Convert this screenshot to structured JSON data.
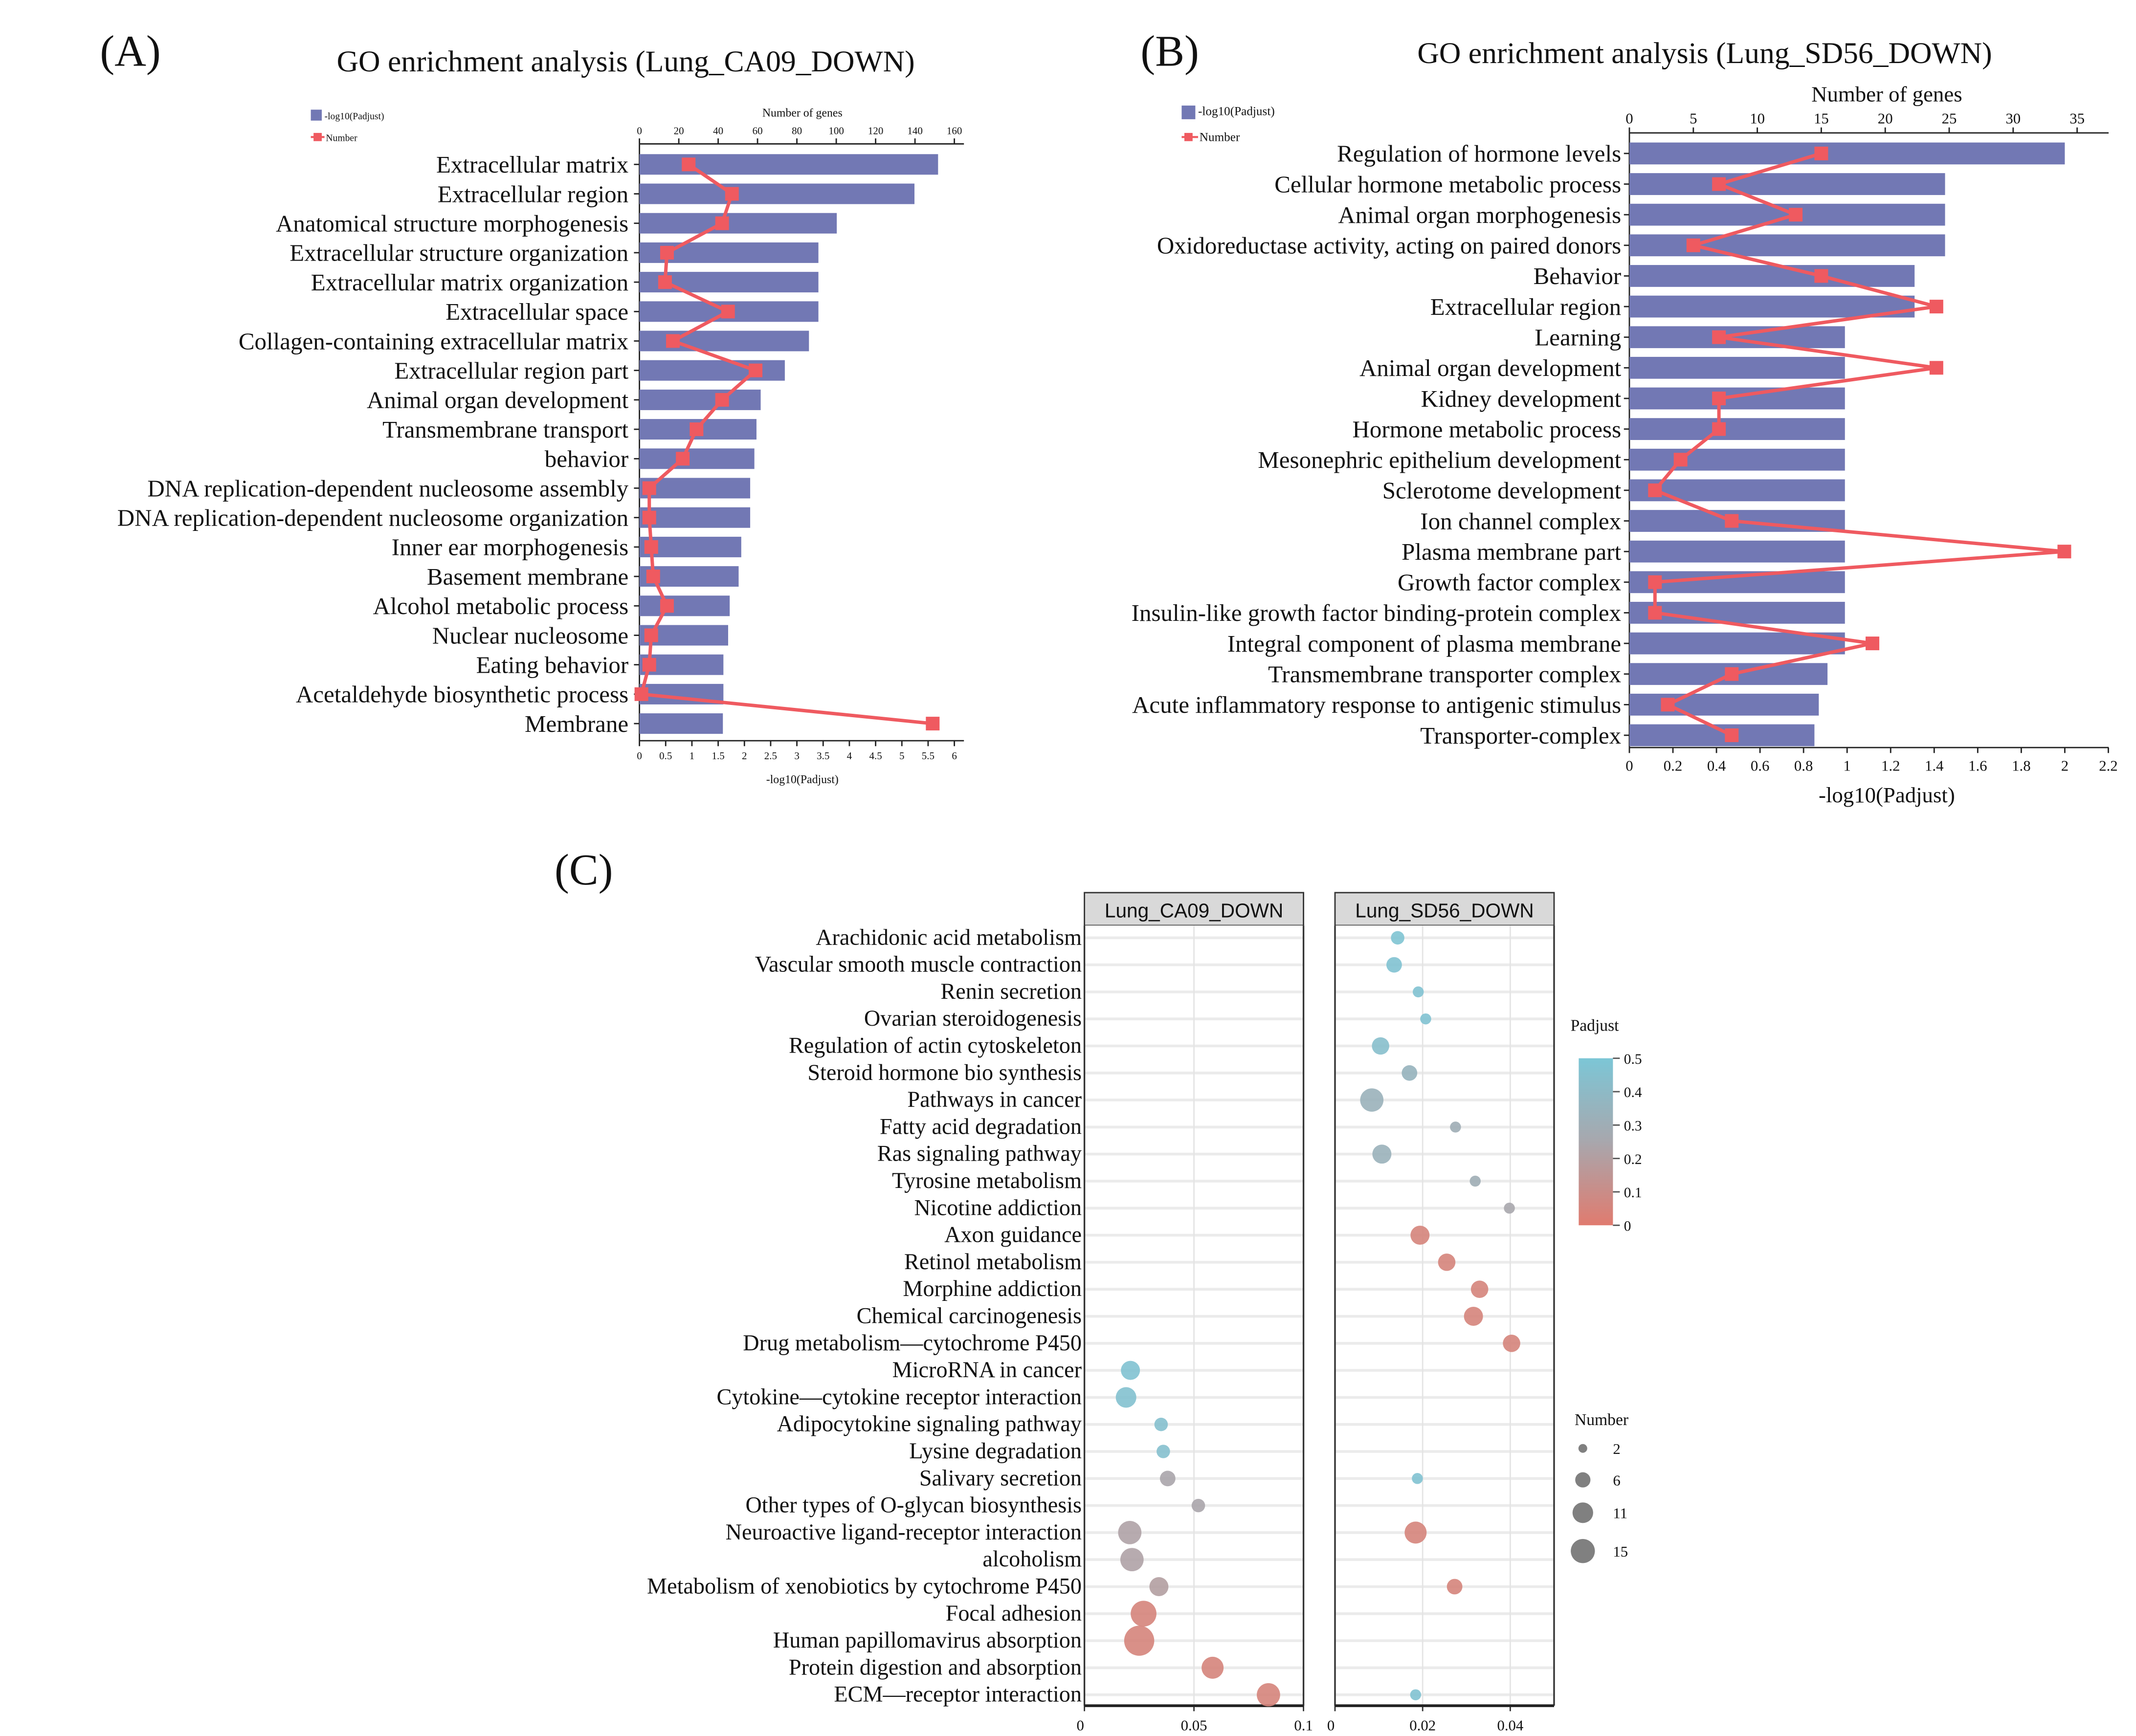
{
  "chart_data": [
    {
      "type": "bar",
      "panel_label": "(A)",
      "title": "GO enrichment analysis (Lung_CA09_DOWN)",
      "legend": [
        "-log10(Padjust)",
        "Number"
      ],
      "xlabel_top": "Number of genes",
      "xlabel_bottom": "-log10(Padjust)",
      "top_ticks": [
        "0",
        "20",
        "40",
        "60",
        "80",
        "100",
        "120",
        "140",
        "160"
      ],
      "bottom_ticks": [
        "0",
        "0.5",
        "1",
        "1.5",
        "2",
        "2.5",
        "3",
        "3.5",
        "4",
        "4.5",
        "5",
        "5.5",
        "6"
      ],
      "xlim_bottom": [
        0,
        6
      ],
      "xlim_top": [
        0,
        160
      ],
      "categories": [
        "Extracellular matrix",
        "Extracellular region",
        "Anatomical structure morphogenesis",
        "Extracellular structure organization",
        "Extracellular matrix organization",
        "Extracellular space",
        "Collagen-containing extracellular matrix",
        "Extracellular region part",
        "Animal organ development",
        "Transmembrane transport",
        "behavior",
        "DNA replication-dependent nucleosome assembly",
        "DNA replication-dependent nucleosome organization",
        "Inner ear morphogenesis",
        "Basement membrane",
        "Alcohol metabolic process",
        "Nuclear nucleosome",
        "Eating behavior",
        "Acetaldehyde biosynthetic process",
        "Membrane"
      ],
      "series": [
        {
          "name": "-log10(Padjust)",
          "kind": "bar",
          "values": [
            5.69,
            5.24,
            3.76,
            3.41,
            3.41,
            3.41,
            3.23,
            2.77,
            2.31,
            2.23,
            2.19,
            2.11,
            2.11,
            1.94,
            1.89,
            1.72,
            1.69,
            1.6,
            1.6,
            1.59
          ]
        },
        {
          "name": "Number",
          "kind": "line",
          "values": [
            25,
            47,
            42,
            14,
            13,
            45,
            17,
            59,
            42,
            29,
            22,
            5,
            5,
            6,
            7,
            14,
            6,
            5,
            1,
            149
          ]
        }
      ],
      "colors": {
        "bar": "#7278b4",
        "line": "#ef5a60"
      }
    },
    {
      "type": "bar",
      "panel_label": "(B)",
      "title": "GO enrichment analysis (Lung_SD56_DOWN)",
      "legend": [
        "-log10(Padjust)",
        "Number"
      ],
      "xlabel_top": "Number of genes",
      "xlabel_bottom": "-log10(Padjust)",
      "top_ticks": [
        "0",
        "5",
        "10",
        "15",
        "20",
        "25",
        "30",
        "35"
      ],
      "bottom_ticks": [
        "0",
        "0.2",
        "0.4",
        "0.6",
        "0.8",
        "1",
        "1.2",
        "1.4",
        "1.6",
        "1.8",
        "2",
        "2.2"
      ],
      "xlim_bottom": [
        0,
        2.2
      ],
      "xlim_top": [
        0,
        37.5
      ],
      "categories": [
        "Regulation of hormone levels",
        "Cellular hormone metabolic process",
        "Animal organ morphogenesis",
        "Oxidoreductase activity, acting on paired donors",
        "Behavior",
        "Extracellular region",
        "Learning",
        "Animal organ development",
        "Kidney development",
        "Hormone metabolic process",
        "Mesonephric epithelium development",
        "Sclerotome development",
        "Ion channel complex",
        "Plasma membrane part",
        "Growth factor complex",
        "Insulin-like growth factor binding-protein complex",
        "Integral component of plasma membrane",
        "Transmembrane transporter complex",
        "Acute inflammatory response to antigenic stimulus",
        "Transporter-complex"
      ],
      "series": [
        {
          "name": "-log10(Padjust)",
          "kind": "bar",
          "values": [
            2.0,
            1.45,
            1.45,
            1.45,
            1.31,
            1.31,
            0.99,
            0.99,
            0.99,
            0.99,
            0.99,
            0.99,
            0.99,
            0.99,
            0.99,
            0.99,
            0.99,
            0.91,
            0.87,
            0.85
          ]
        },
        {
          "name": "Number",
          "kind": "line",
          "values": [
            15,
            7,
            13,
            5,
            15,
            24,
            7,
            24,
            7,
            7,
            4,
            2,
            8,
            34,
            2,
            2,
            19,
            8,
            3,
            8
          ]
        }
      ],
      "colors": {
        "bar": "#7278b4",
        "line": "#ef5a60"
      }
    },
    {
      "type": "scatter",
      "panel_label": "(C)",
      "facets": [
        "Lung_CA09_DOWN",
        "Lung_SD56_DOWN"
      ],
      "facet_ticks": [
        [
          "0",
          "0.05",
          "0.1"
        ],
        [
          "0",
          "0.02",
          "0.04"
        ]
      ],
      "facet_xlim": [
        [
          0,
          0.1
        ],
        [
          0,
          0.05
        ]
      ],
      "categories": [
        "Arachidonic acid metabolism",
        "Vascular smooth muscle contraction",
        "Renin secretion",
        "Ovarian steroidogenesis",
        "Regulation of actin cytoskeleton",
        "Steroid hormone bio synthesis",
        "Pathways in cancer",
        "Fatty acid degradation",
        "Ras signaling pathway",
        "Tyrosine metabolism",
        "Nicotine addiction",
        "Axon guidance",
        "Retinol metabolism",
        "Morphine addiction",
        "Chemical carcinogenesis",
        "Drug metabolism—cytochrome P450",
        "MicroRNA in cancer",
        "Cytokine—cytokine receptor interaction",
        "Adipocytokine signaling pathway",
        "Lysine degradation",
        "Salivary secretion",
        "Other types of O-glycan biosynthesis",
        "Neuroactive ligand-receptor interaction",
        "alcoholism",
        "Metabolism of xenobiotics by cytochrome P450",
        "Focal adhesion",
        "Human papillomavirus absorption",
        "Protein digestion and absorption",
        "ECM—receptor interaction"
      ],
      "points": [
        {
          "facet": 1,
          "category": 0,
          "x": 0.0143,
          "padjust": 0.48,
          "number": 3
        },
        {
          "facet": 1,
          "category": 1,
          "x": 0.0135,
          "padjust": 0.47,
          "number": 4
        },
        {
          "facet": 1,
          "category": 2,
          "x": 0.019,
          "padjust": 0.47,
          "number": 2
        },
        {
          "facet": 1,
          "category": 3,
          "x": 0.0207,
          "padjust": 0.47,
          "number": 2
        },
        {
          "facet": 1,
          "category": 4,
          "x": 0.0104,
          "padjust": 0.44,
          "number": 5
        },
        {
          "facet": 1,
          "category": 5,
          "x": 0.017,
          "padjust": 0.35,
          "number": 4
        },
        {
          "facet": 1,
          "category": 6,
          "x": 0.0084,
          "padjust": 0.33,
          "number": 9
        },
        {
          "facet": 1,
          "category": 7,
          "x": 0.0275,
          "padjust": 0.3,
          "number": 2
        },
        {
          "facet": 1,
          "category": 8,
          "x": 0.0107,
          "padjust": 0.33,
          "number": 6
        },
        {
          "facet": 1,
          "category": 9,
          "x": 0.032,
          "padjust": 0.3,
          "number": 2
        },
        {
          "facet": 1,
          "category": 10,
          "x": 0.0398,
          "padjust": 0.25,
          "number": 2
        },
        {
          "facet": 1,
          "category": 11,
          "x": 0.0194,
          "padjust": 0.05,
          "number": 6
        },
        {
          "facet": 1,
          "category": 12,
          "x": 0.0255,
          "padjust": 0.05,
          "number": 5
        },
        {
          "facet": 1,
          "category": 13,
          "x": 0.033,
          "padjust": 0.05,
          "number": 5
        },
        {
          "facet": 1,
          "category": 14,
          "x": 0.0316,
          "padjust": 0.05,
          "number": 6
        },
        {
          "facet": 1,
          "category": 15,
          "x": 0.0403,
          "padjust": 0.05,
          "number": 5
        },
        {
          "facet": 0,
          "category": 16,
          "x": 0.021,
          "padjust": 0.47,
          "number": 6
        },
        {
          "facet": 0,
          "category": 17,
          "x": 0.019,
          "padjust": 0.46,
          "number": 7
        },
        {
          "facet": 0,
          "category": 18,
          "x": 0.035,
          "padjust": 0.45,
          "number": 3
        },
        {
          "facet": 0,
          "category": 19,
          "x": 0.036,
          "padjust": 0.45,
          "number": 3
        },
        {
          "facet": 0,
          "category": 20,
          "x": 0.038,
          "padjust": 0.24,
          "number": 4
        },
        {
          "facet": 1,
          "category": 20,
          "x": 0.0188,
          "padjust": 0.47,
          "number": 2
        },
        {
          "facet": 0,
          "category": 21,
          "x": 0.052,
          "padjust": 0.24,
          "number": 3
        },
        {
          "facet": 0,
          "category": 22,
          "x": 0.0207,
          "padjust": 0.22,
          "number": 9
        },
        {
          "facet": 1,
          "category": 22,
          "x": 0.0184,
          "padjust": 0.05,
          "number": 8
        },
        {
          "facet": 0,
          "category": 23,
          "x": 0.0217,
          "padjust": 0.22,
          "number": 9
        },
        {
          "facet": 0,
          "category": 24,
          "x": 0.034,
          "padjust": 0.2,
          "number": 6
        },
        {
          "facet": 1,
          "category": 24,
          "x": 0.0273,
          "padjust": 0.05,
          "number": 4
        },
        {
          "facet": 0,
          "category": 25,
          "x": 0.027,
          "padjust": 0.05,
          "number": 11
        },
        {
          "facet": 0,
          "category": 26,
          "x": 0.025,
          "padjust": 0.05,
          "number": 15
        },
        {
          "facet": 0,
          "category": 27,
          "x": 0.0585,
          "padjust": 0.05,
          "number": 8
        },
        {
          "facet": 0,
          "category": 28,
          "x": 0.084,
          "padjust": 0.05,
          "number": 9
        },
        {
          "facet": 1,
          "category": 28,
          "x": 0.0184,
          "padjust": 0.47,
          "number": 2
        }
      ],
      "color_legend": {
        "title": "Padjust",
        "ticks": [
          "0.5",
          "0.4",
          "0.3",
          "0.2",
          "0.1",
          "0"
        ],
        "low_color": "#e07b6f",
        "mid_color": "#a8a7ad",
        "high_color": "#7cc6d6"
      },
      "size_legend": {
        "title": "Number",
        "values": [
          "2",
          "6",
          "11",
          "15"
        ]
      }
    }
  ]
}
